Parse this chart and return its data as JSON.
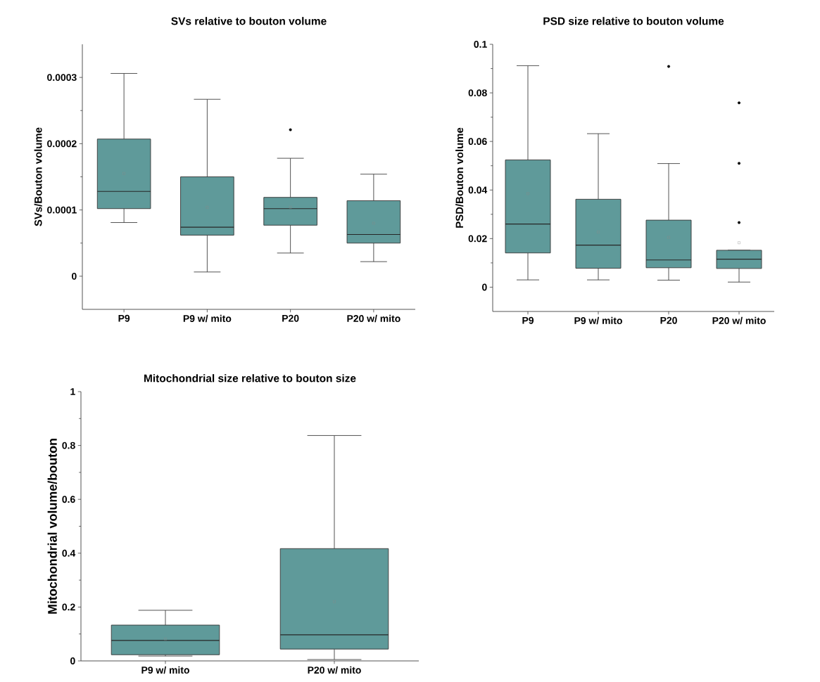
{
  "chart_data": [
    {
      "type": "box",
      "title": "SVs relative to bouton volume",
      "ylabel": "SVs/Bouton volume",
      "color": "#5f9a9a",
      "categories": [
        "P9",
        "P9 w/ mito",
        "P20",
        "P20 w/ mito"
      ],
      "ylim": [
        -5e-05,
        0.00035
      ],
      "yticks": [
        0,
        0.0001,
        0.0002,
        0.0003
      ],
      "boxes": [
        {
          "low": 8.1e-05,
          "q1": 0.000102,
          "median": 0.000128,
          "q3": 0.000207,
          "high": 0.000306,
          "mean": 0.000155
        },
        {
          "low": 6.4e-06,
          "q1": 6.2e-05,
          "median": 7.4e-05,
          "q3": 0.00015,
          "high": 0.000267,
          "mean": 0.000104
        },
        {
          "low": 3.5e-05,
          "q1": 7.7e-05,
          "median": 0.000102,
          "q3": 0.000119,
          "high": 0.000178,
          "mean": 0.000104,
          "outliers": [
            0.000221
          ]
        },
        {
          "low": 2.2e-05,
          "q1": 5e-05,
          "median": 6.3e-05,
          "q3": 0.000114,
          "high": 0.000154,
          "mean": 8e-05
        }
      ]
    },
    {
      "type": "box",
      "title": "PSD size relative to bouton volume",
      "ylabel": "PSD/Bouton volume",
      "color": "#5f9a9a",
      "categories": [
        "P9",
        "P9 w/ mito",
        "P20",
        "P20 w/ mito"
      ],
      "ylim": [
        -0.01,
        0.1
      ],
      "yticks": [
        0,
        0.02,
        0.04,
        0.06,
        0.08,
        0.1
      ],
      "boxes": [
        {
          "low": 0.003,
          "q1": 0.0141,
          "median": 0.026,
          "q3": 0.0524,
          "high": 0.0912,
          "mean": 0.0385
        },
        {
          "low": 0.003,
          "q1": 0.0078,
          "median": 0.0173,
          "q3": 0.0362,
          "high": 0.0632,
          "mean": 0.0227
        },
        {
          "low": 0.0029,
          "q1": 0.008,
          "median": 0.0112,
          "q3": 0.0276,
          "high": 0.0509,
          "mean": 0.0205,
          "outliers": [
            0.0909
          ]
        },
        {
          "low": 0.0021,
          "q1": 0.0077,
          "median": 0.0115,
          "q3": 0.0152,
          "high": 0.0152,
          "mean": 0.0183,
          "outliers": [
            0.0266,
            0.051,
            0.0759
          ]
        }
      ]
    },
    {
      "type": "box",
      "title": "Mitochondrial size relative to bouton size",
      "ylabel": "Mitochondrial volume/bouton",
      "color": "#5f9a9a",
      "categories": [
        "P9 w/ mito",
        "P20 w/ mito"
      ],
      "ylim": [
        0,
        1
      ],
      "yticks": [
        0,
        0.2,
        0.4,
        0.6,
        0.8,
        1
      ],
      "boxes": [
        {
          "low": 0.018,
          "q1": 0.023,
          "median": 0.076,
          "q3": 0.133,
          "high": 0.188,
          "mean": 0.081
        },
        {
          "low": 0.005,
          "q1": 0.044,
          "median": 0.097,
          "q3": 0.417,
          "high": 0.837,
          "mean": 0.22
        }
      ]
    }
  ]
}
